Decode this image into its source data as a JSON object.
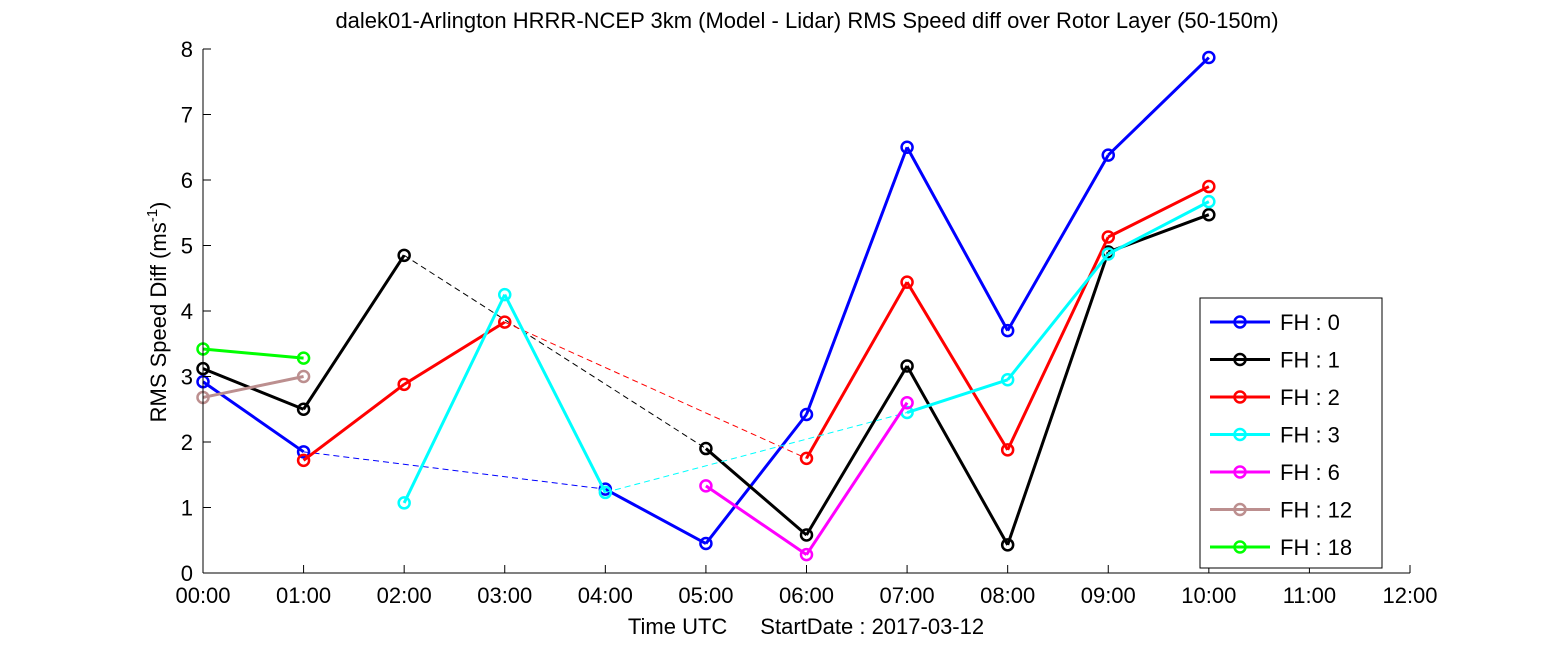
{
  "chart_data": {
    "type": "line",
    "title": "dalek01-Arlington HRRR-NCEP 3km (Model - Lidar) RMS Speed diff over Rotor Layer (50-150m)",
    "xlabel_main": "Time UTC",
    "xlabel_date": "StartDate : 2017-03-12",
    "ylabel": "RMS Speed Diff (ms",
    "ylabel_sup": "-1",
    "ylabel_close": ")",
    "xlim": [
      0,
      12
    ],
    "ylim": [
      0,
      8
    ],
    "xticks": [
      "00:00",
      "01:00",
      "02:00",
      "03:00",
      "04:00",
      "05:00",
      "06:00",
      "07:00",
      "08:00",
      "09:00",
      "10:00",
      "11:00",
      "12:00"
    ],
    "yticks": [
      "0",
      "1",
      "2",
      "3",
      "4",
      "5",
      "6",
      "7",
      "8"
    ],
    "grid": false,
    "legend_position": "bottom-right",
    "series": [
      {
        "name": "FH : 0",
        "color": "#0000ff",
        "width": 3,
        "x": [
          0,
          1,
          4,
          5,
          6,
          7,
          8,
          9,
          10
        ],
        "y": [
          2.92,
          1.85,
          1.28,
          0.45,
          2.42,
          6.5,
          3.7,
          6.38,
          7.87
        ],
        "segments_solid": [
          true,
          false,
          true,
          true,
          true,
          true,
          true,
          true
        ]
      },
      {
        "name": "FH : 1",
        "color": "#000000",
        "width": 3,
        "x": [
          0,
          1,
          2,
          5,
          6,
          7,
          8,
          9,
          10
        ],
        "y": [
          3.12,
          2.5,
          4.85,
          1.9,
          0.58,
          3.16,
          0.43,
          4.9,
          5.47
        ],
        "segments_solid": [
          true,
          true,
          false,
          true,
          true,
          true,
          true,
          true
        ]
      },
      {
        "name": "FH : 2",
        "color": "#ff0000",
        "width": 3,
        "x": [
          1,
          2,
          3,
          6,
          7,
          8,
          9,
          10
        ],
        "y": [
          1.72,
          2.88,
          3.83,
          1.75,
          4.44,
          1.88,
          5.13,
          5.9
        ],
        "segments_solid": [
          true,
          true,
          false,
          true,
          true,
          true,
          true
        ]
      },
      {
        "name": "FH : 3",
        "color": "#00ffff",
        "width": 3,
        "x": [
          2,
          3,
          4,
          7,
          8,
          9,
          10
        ],
        "y": [
          1.07,
          4.25,
          1.23,
          2.45,
          2.95,
          4.87,
          5.67
        ],
        "segments_solid": [
          true,
          true,
          false,
          true,
          true,
          true
        ]
      },
      {
        "name": "FH : 6",
        "color": "#ff00ff",
        "width": 3,
        "x": [
          5,
          6,
          7
        ],
        "y": [
          1.33,
          0.28,
          2.6
        ],
        "segments_solid": [
          true,
          true
        ]
      },
      {
        "name": "FH : 12",
        "color": "#bc8f8f",
        "width": 3,
        "x": [
          0,
          1
        ],
        "y": [
          2.68,
          3.0
        ],
        "segments_solid": [
          true
        ]
      },
      {
        "name": "FH : 18",
        "color": "#00ff00",
        "width": 3,
        "x": [
          0,
          1
        ],
        "y": [
          3.42,
          3.28
        ],
        "segments_solid": [
          true
        ]
      }
    ]
  }
}
